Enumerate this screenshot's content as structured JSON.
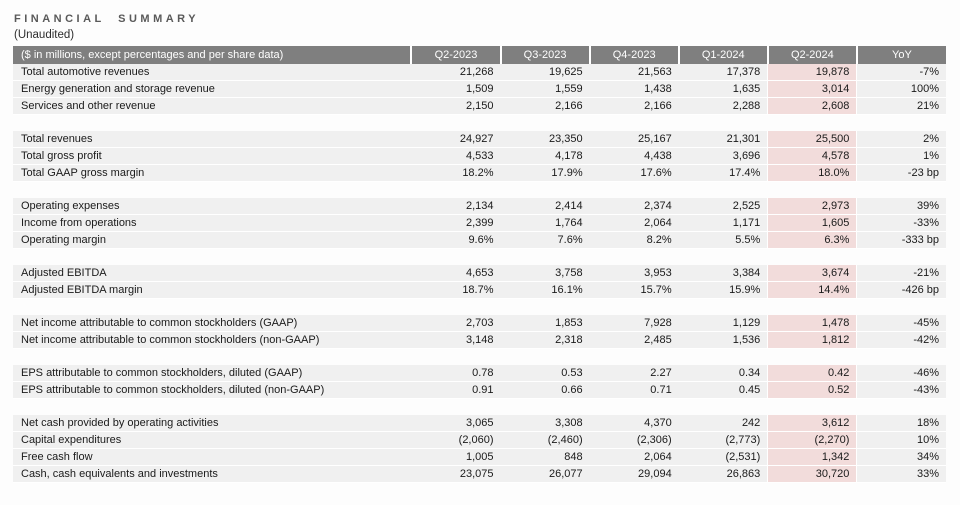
{
  "document": {
    "title": "FINANCIAL SUMMARY",
    "subtitle": "(Unaudited)"
  },
  "table": {
    "header": {
      "label": "($ in millions, except percentages and per share data)",
      "columns": [
        "Q2-2023",
        "Q3-2023",
        "Q4-2023",
        "Q1-2024",
        "Q2-2024",
        "YoY"
      ]
    },
    "highlighted_column": "Q2-2024",
    "colors": {
      "header_bg": "#7f7f7f",
      "header_text": "#ffffff",
      "row_bg": "#f0f0f0",
      "highlight_bg": "#f2dcdb",
      "title_text": "#595959",
      "body_text": "#1a1a1a"
    },
    "rows": [
      {
        "label": "Total automotive revenues",
        "values": [
          "21,268",
          "19,625",
          "21,563",
          "17,378",
          "19,878",
          "-7%"
        ]
      },
      {
        "label": "Energy generation and storage revenue",
        "values": [
          "1,509",
          "1,559",
          "1,438",
          "1,635",
          "3,014",
          "100%"
        ]
      },
      {
        "label": "Services and other revenue",
        "values": [
          "2,150",
          "2,166",
          "2,166",
          "2,288",
          "2,608",
          "21%"
        ]
      },
      {
        "type": "spacer"
      },
      {
        "label": "Total revenues",
        "values": [
          "24,927",
          "23,350",
          "25,167",
          "21,301",
          "25,500",
          "2%"
        ]
      },
      {
        "label": "Total gross profit",
        "values": [
          "4,533",
          "4,178",
          "4,438",
          "3,696",
          "4,578",
          "1%"
        ]
      },
      {
        "label": "Total GAAP gross margin",
        "values": [
          "18.2%",
          "17.9%",
          "17.6%",
          "17.4%",
          "18.0%",
          "-23 bp"
        ]
      },
      {
        "type": "spacer"
      },
      {
        "label": "Operating expenses",
        "values": [
          "2,134",
          "2,414",
          "2,374",
          "2,525",
          "2,973",
          "39%"
        ]
      },
      {
        "label": "Income from operations",
        "values": [
          "2,399",
          "1,764",
          "2,064",
          "1,171",
          "1,605",
          "-33%"
        ]
      },
      {
        "label": "Operating margin",
        "values": [
          "9.6%",
          "7.6%",
          "8.2%",
          "5.5%",
          "6.3%",
          "-333 bp"
        ]
      },
      {
        "type": "spacer"
      },
      {
        "label": "Adjusted EBITDA",
        "values": [
          "4,653",
          "3,758",
          "3,953",
          "3,384",
          "3,674",
          "-21%"
        ]
      },
      {
        "label": "Adjusted EBITDA margin",
        "values": [
          "18.7%",
          "16.1%",
          "15.7%",
          "15.9%",
          "14.4%",
          "-426 bp"
        ]
      },
      {
        "type": "spacer"
      },
      {
        "label": "Net income attributable to common stockholders (GAAP)",
        "values": [
          "2,703",
          "1,853",
          "7,928",
          "1,129",
          "1,478",
          "-45%"
        ]
      },
      {
        "label": "Net income attributable to common stockholders (non-GAAP)",
        "values": [
          "3,148",
          "2,318",
          "2,485",
          "1,536",
          "1,812",
          "-42%"
        ]
      },
      {
        "type": "spacer"
      },
      {
        "label": "EPS attributable to common stockholders, diluted (GAAP)",
        "values": [
          "0.78",
          "0.53",
          "2.27",
          "0.34",
          "0.42",
          "-46%"
        ]
      },
      {
        "label": "EPS attributable to common stockholders, diluted (non-GAAP)",
        "values": [
          "0.91",
          "0.66",
          "0.71",
          "0.45",
          "0.52",
          "-43%"
        ]
      },
      {
        "type": "spacer"
      },
      {
        "label": "Net cash provided by operating activities",
        "values": [
          "3,065",
          "3,308",
          "4,370",
          "242",
          "3,612",
          "18%"
        ]
      },
      {
        "label": "Capital expenditures",
        "values": [
          "(2,060)",
          "(2,460)",
          "(2,306)",
          "(2,773)",
          "(2,270)",
          "10%"
        ]
      },
      {
        "label": "Free cash flow",
        "values": [
          "1,005",
          "848",
          "2,064",
          "(2,531)",
          "1,342",
          "34%"
        ]
      },
      {
        "label": "Cash, cash equivalents and investments",
        "values": [
          "23,075",
          "26,077",
          "29,094",
          "26,863",
          "30,720",
          "33%"
        ]
      }
    ]
  }
}
